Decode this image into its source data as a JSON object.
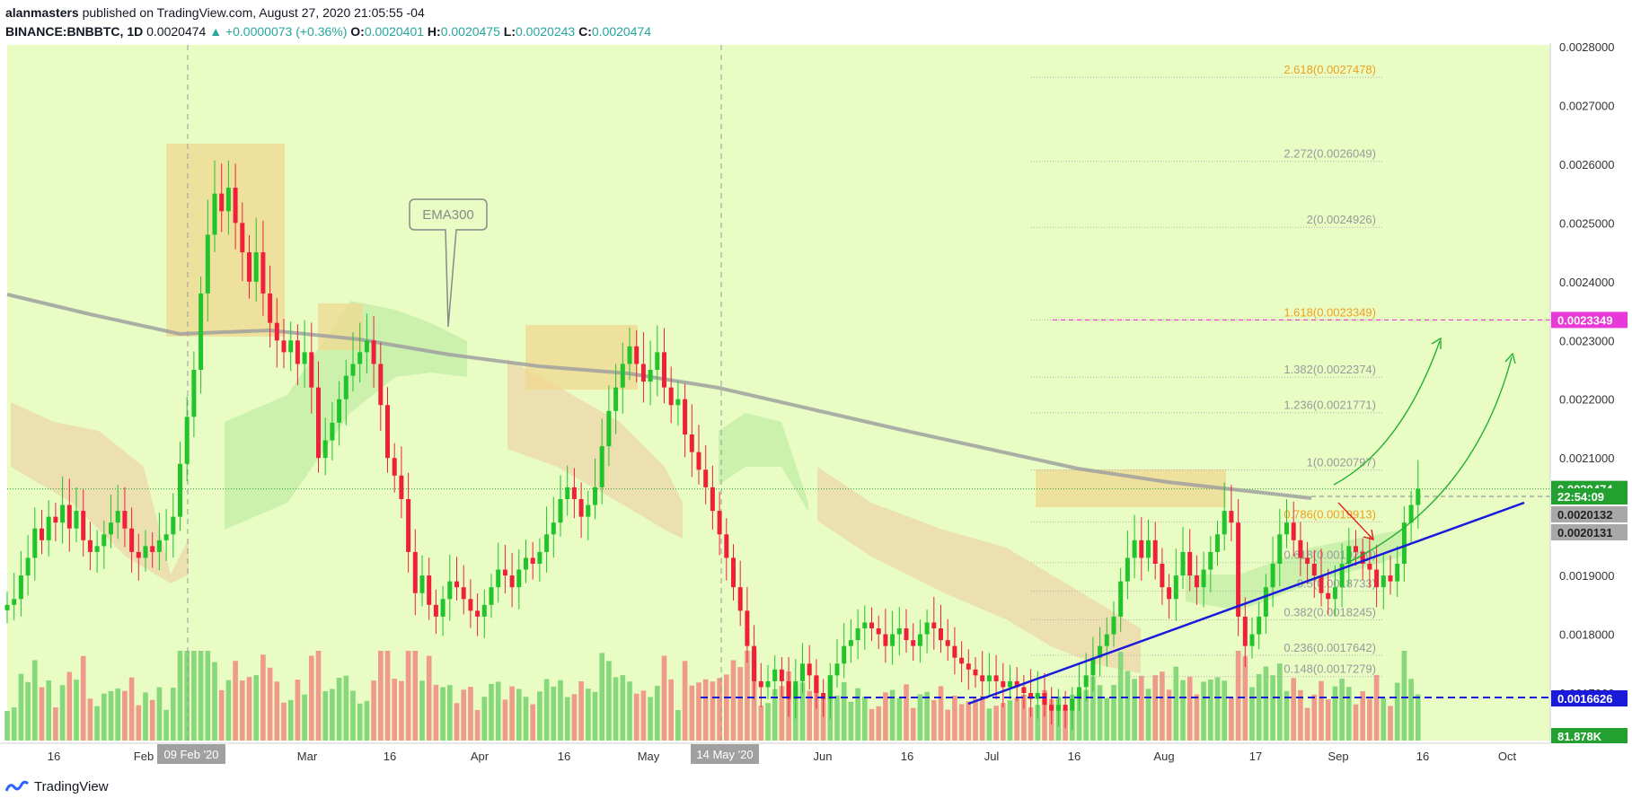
{
  "header": {
    "line1_user": "alanmasters",
    "line1_rest": " published on TradingView.com, August 27, 2020 21:05:55 -04",
    "symbol": "BINANCE:BNBBTC, 1D",
    "last": "0.0020474",
    "change": "▲ +0.0000073 (+0.36%)",
    "o_label": "O:",
    "o_val": "0.0020401",
    "h_label": "H:",
    "h_val": "0.0020475",
    "l_label": "L:",
    "l_val": "0.0020243",
    "c_label": "C:",
    "c_val": "0.0020474"
  },
  "footer": {
    "brand": "TradingView"
  },
  "colors": {
    "bg": "#e8fcc4",
    "up": "#22c42c",
    "down": "#f0203a",
    "vol_up": "#86d87a",
    "vol_down": "#ef9a8a",
    "ema": "#a0a0a0",
    "cloud_green": "#c8efaa",
    "cloud_tan": "#ecdcae",
    "box": "#f0d890",
    "trend": "#1a1adb",
    "fib": "#b0b0b0",
    "fib_text": "#9a9a9a",
    "fib_orange": "#f0a020",
    "magenta": "#e838d8"
  },
  "chart_data": {
    "type": "candlestick",
    "symbol": "BINANCE:BNBBTC",
    "interval": "1D",
    "date_range": [
      "2020-01-09",
      "2020-08-27"
    ],
    "y_axis_ticks": [
      "0.0028000",
      "0.0027000",
      "0.0026000",
      "0.0025000",
      "0.0024000",
      "0.0023000",
      "0.0022000",
      "0.0021000",
      "0.0020000",
      "0.0019000",
      "0.0018000",
      "0.0017000"
    ],
    "ylim": [
      0.0016,
      0.0028
    ],
    "x_axis_ticks": [
      "16",
      "Feb",
      "Mar",
      "16",
      "Apr",
      "16",
      "May",
      "16",
      "Jun",
      "16",
      "Jul",
      "16",
      "Aug",
      "17",
      "Sep",
      "16",
      "Oct"
    ],
    "x_highlight_labels": [
      "09 Feb '20",
      "14 May '20"
    ],
    "price_labels": [
      {
        "value": "0.0023349",
        "color": "magenta"
      },
      {
        "value": "0.0020474",
        "color": "up"
      },
      {
        "value": "22:54:09",
        "color": "up"
      },
      {
        "value": "0.0020132",
        "color": "gray"
      },
      {
        "value": "0.0020131",
        "color": "gray"
      },
      {
        "value": "0.0016626",
        "color": "trend"
      },
      {
        "value": "81.878K",
        "color": "up"
      }
    ],
    "annotation": "EMA300",
    "fib_levels": [
      {
        "label": "2.618(0.0027478)",
        "value": 0.0027478
      },
      {
        "label": "2.272(0.0026049)",
        "value": 0.0026049
      },
      {
        "label": "2(0.0024926)",
        "value": 0.0024926
      },
      {
        "label": "1.618(0.0023349)",
        "value": 0.0023349
      },
      {
        "label": "1.382(0.0022374)",
        "value": 0.0022374
      },
      {
        "label": "1.236(0.0021771)",
        "value": 0.0021771
      },
      {
        "label": "1(0.0020797)",
        "value": 0.0020797
      },
      {
        "label": "0.786(0.0019913)",
        "value": 0.0019913
      },
      {
        "label": "0.618(0.0019220)",
        "value": 0.001922
      },
      {
        "label": "0.5(0.0018733)",
        "value": 0.0018733
      },
      {
        "label": "0.382(0.0018245)",
        "value": 0.0018245
      },
      {
        "label": "0.236(0.0017642)",
        "value": 0.0017642
      },
      {
        "label": "0.148(0.0017279)",
        "value": 0.0017279
      }
    ],
    "closes": [
      0.00185,
      0.00186,
      0.0019,
      0.00193,
      0.00198,
      0.00196,
      0.002,
      0.00199,
      0.00202,
      0.00198,
      0.00201,
      0.00196,
      0.00194,
      0.00195,
      0.00197,
      0.00199,
      0.00201,
      0.00198,
      0.00194,
      0.00193,
      0.00195,
      0.00194,
      0.00196,
      0.00197,
      0.002,
      0.00209,
      0.00217,
      0.00225,
      0.00238,
      0.00248,
      0.00255,
      0.00252,
      0.00256,
      0.0025,
      0.00245,
      0.0024,
      0.00245,
      0.00238,
      0.00233,
      0.0023,
      0.00228,
      0.0023,
      0.00226,
      0.00228,
      0.00222,
      0.0021,
      0.00213,
      0.00216,
      0.0022,
      0.00224,
      0.00226,
      0.00228,
      0.0023,
      0.00226,
      0.00219,
      0.0021,
      0.00207,
      0.00203,
      0.00194,
      0.00187,
      0.0019,
      0.00185,
      0.00183,
      0.00186,
      0.00189,
      0.00188,
      0.00186,
      0.00184,
      0.00183,
      0.00185,
      0.00188,
      0.00191,
      0.0019,
      0.00188,
      0.00191,
      0.00193,
      0.00192,
      0.00194,
      0.00197,
      0.00199,
      0.00203,
      0.00205,
      0.00203,
      0.002,
      0.00202,
      0.00205,
      0.00212,
      0.00218,
      0.00222,
      0.00226,
      0.00229,
      0.00226,
      0.00223,
      0.00225,
      0.00228,
      0.00222,
      0.00219,
      0.0022,
      0.00214,
      0.00211,
      0.00208,
      0.00205,
      0.00201,
      0.00197,
      0.00193,
      0.00188,
      0.00184,
      0.00178,
      0.00172,
      0.00171,
      0.00172,
      0.00174,
      0.00172,
      0.00169,
      0.00172,
      0.00175,
      0.00173,
      0.0017,
      0.00169,
      0.00173,
      0.00175,
      0.00178,
      0.00179,
      0.00181,
      0.00182,
      0.00181,
      0.0018,
      0.00178,
      0.0018,
      0.00181,
      0.00179,
      0.00178,
      0.0018,
      0.00182,
      0.00181,
      0.00179,
      0.00178,
      0.00176,
      0.00175,
      0.00174,
      0.00173,
      0.00172,
      0.00173,
      0.00172,
      0.00171,
      0.00172,
      0.00171,
      0.0017,
      0.00169,
      0.0017,
      0.00168,
      0.00167,
      0.00168,
      0.00167,
      0.00169,
      0.00171,
      0.00173,
      0.00176,
      0.00178,
      0.0018,
      0.00183,
      0.00189,
      0.00193,
      0.00196,
      0.00193,
      0.00196,
      0.00192,
      0.00188,
      0.00186,
      0.0019,
      0.00194,
      0.0019,
      0.00188,
      0.00191,
      0.00194,
      0.00197,
      0.00201,
      0.00199,
      0.00183,
      0.00178,
      0.0018,
      0.00183,
      0.00188,
      0.00192,
      0.00197,
      0.00199,
      0.00196,
      0.00193,
      0.00192,
      0.0019,
      0.00187,
      0.00186,
      0.00188,
      0.00192,
      0.00195,
      0.00194,
      0.00192,
      0.00191,
      0.00188,
      0.0019,
      0.00189,
      0.00192,
      0.00199,
      0.00202,
      0.0020474
    ],
    "volume_scale_max_label": "81.878K"
  }
}
